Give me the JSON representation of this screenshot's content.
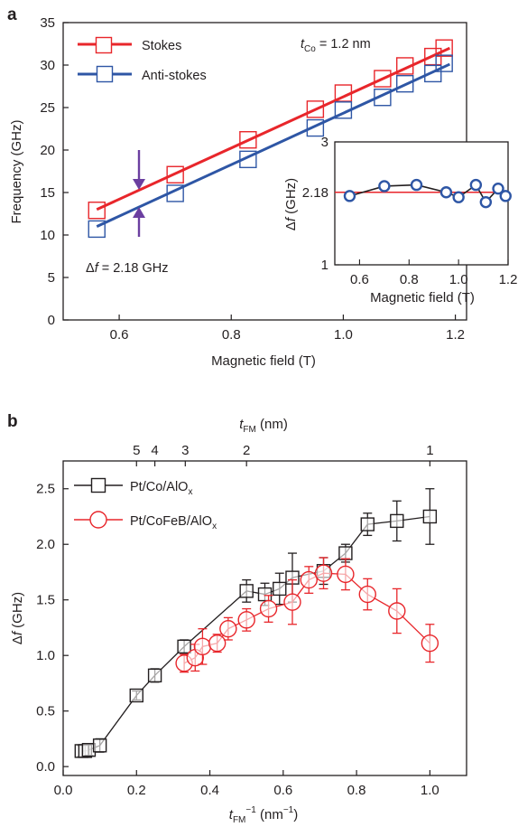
{
  "panel_labels": [
    "a",
    "b"
  ],
  "colors": {
    "stokes": "#e8262b",
    "antistokes": "#2e56a5",
    "inset_marker": "#2e56a5",
    "inset_ref": "#e8262b",
    "coalo": "#231f20",
    "cofeb": "#e8262b"
  },
  "annotations": {
    "a_tco_main": "t",
    "a_tco_sub": "Co",
    "a_tco_rest": " = 1.2 nm",
    "a_df_sym": "Δ",
    "a_df_f": "f",
    "a_df_rest": " = 2.18 GHz"
  },
  "chart_data": [
    {
      "type": "line",
      "xlabel": "Magnetic field (T)",
      "ylabel": "Frequency (GHz)",
      "xlim": [
        0.5,
        1.22
      ],
      "ylim": [
        0,
        35
      ],
      "xticks": [
        "0.6",
        "0.8",
        "1.0",
        "1.2"
      ],
      "yticks": [
        "0",
        "5",
        "10",
        "15",
        "20",
        "25",
        "30",
        "35"
      ],
      "legend_position": "top-left",
      "series": [
        {
          "name": "Stokes",
          "color": "#e8262b",
          "x": [
            0.56,
            0.7,
            0.83,
            0.95,
            1.0,
            1.07,
            1.11,
            1.16,
            1.18
          ],
          "y": [
            12.9,
            17.1,
            21.2,
            24.8,
            26.7,
            28.4,
            29.9,
            31.0,
            32.0
          ],
          "fit": [
            [
              0.56,
              13.0
            ],
            [
              1.19,
              32.0
            ]
          ]
        },
        {
          "name": "Anti-stokes",
          "color": "#2e56a5",
          "x": [
            0.56,
            0.7,
            0.83,
            0.95,
            1.0,
            1.07,
            1.11,
            1.16,
            1.18
          ],
          "y": [
            10.7,
            14.9,
            18.9,
            22.6,
            24.7,
            26.2,
            27.8,
            29.0,
            30.2
          ],
          "fit": [
            [
              0.56,
              11.0
            ],
            [
              1.19,
              30.1
            ]
          ]
        }
      ]
    },
    {
      "type": "line",
      "inset": true,
      "xlabel": "Magnetic field (T)",
      "ylabel_sym": "Δ",
      "ylabel_f": "f",
      "ylabel_unit": " (GHz)",
      "xlim": [
        0.5,
        1.2
      ],
      "ylim": [
        1,
        3
      ],
      "xticks": [
        "0.6",
        "0.8",
        "1.0",
        "1.2"
      ],
      "yticks": [
        "1",
        "2.18",
        "3"
      ],
      "reference": 2.18,
      "series": [
        {
          "color": "#2e56a5",
          "x": [
            0.56,
            0.7,
            0.83,
            0.95,
            1.0,
            1.07,
            1.11,
            1.16,
            1.19
          ],
          "y": [
            2.12,
            2.28,
            2.3,
            2.18,
            2.1,
            2.3,
            2.02,
            2.24,
            2.12
          ]
        }
      ]
    },
    {
      "type": "scatter",
      "xlabel_main": "t",
      "xlabel_sub": "FM",
      "xlabel_sup": "−1",
      "xlabel_unit": " (nm",
      "xlabel_unit_sup": "−1",
      "xlabel_close": ")",
      "top_xlabel_main": "t",
      "top_xlabel_sub": "FM",
      "top_xlabel_unit": " (nm)",
      "ylabel_sym": "Δ",
      "ylabel_f": "f",
      "ylabel_unit": " (GHz)",
      "xlim": [
        0,
        1.1
      ],
      "ylim": [
        -0.08,
        2.75
      ],
      "xticks": [
        "0.0",
        "0.2",
        "0.4",
        "0.6",
        "0.8",
        "1.0"
      ],
      "yticks": [
        "0.0",
        "0.5",
        "1.0",
        "1.5",
        "2.0",
        "2.5"
      ],
      "top_ticks": [
        {
          "label": "5",
          "value": 0.2
        },
        {
          "label": "4",
          "value": 0.25
        },
        {
          "label": "3",
          "value": 0.333
        },
        {
          "label": "2",
          "value": 0.5
        },
        {
          "label": "1",
          "value": 1.0
        }
      ],
      "legend_position": "top-left",
      "series": [
        {
          "name_main": "Pt/Co/AlO",
          "name_sub": "x",
          "color": "#231f20",
          "marker": "square",
          "x": [
            0.05,
            0.06,
            0.07,
            0.1,
            0.2,
            0.25,
            0.33,
            0.5,
            0.55,
            0.59,
            0.625,
            0.71,
            0.77,
            0.83,
            0.91,
            1.0
          ],
          "y": [
            0.14,
            0.14,
            0.15,
            0.19,
            0.64,
            0.82,
            1.08,
            1.58,
            1.55,
            1.6,
            1.7,
            1.76,
            1.92,
            2.18,
            2.21,
            2.25
          ],
          "err": [
            0.05,
            0.05,
            0.05,
            0.06,
            0.04,
            0.06,
            0.06,
            0.1,
            0.1,
            0.14,
            0.22,
            0.12,
            0.08,
            0.1,
            0.18,
            0.25
          ]
        },
        {
          "name_main": "Pt/CoFeB/AlO",
          "name_sub": "x",
          "color": "#e8262b",
          "marker": "circle",
          "x": [
            0.33,
            0.36,
            0.38,
            0.42,
            0.45,
            0.5,
            0.56,
            0.625,
            0.67,
            0.71,
            0.77,
            0.83,
            0.91,
            1.0
          ],
          "y": [
            0.93,
            0.98,
            1.08,
            1.11,
            1.24,
            1.32,
            1.42,
            1.48,
            1.68,
            1.74,
            1.73,
            1.55,
            1.4,
            1.11
          ],
          "err": [
            0.08,
            0.12,
            0.16,
            0.08,
            0.1,
            0.1,
            0.12,
            0.2,
            0.12,
            0.14,
            0.14,
            0.14,
            0.2,
            0.17
          ]
        }
      ]
    }
  ]
}
